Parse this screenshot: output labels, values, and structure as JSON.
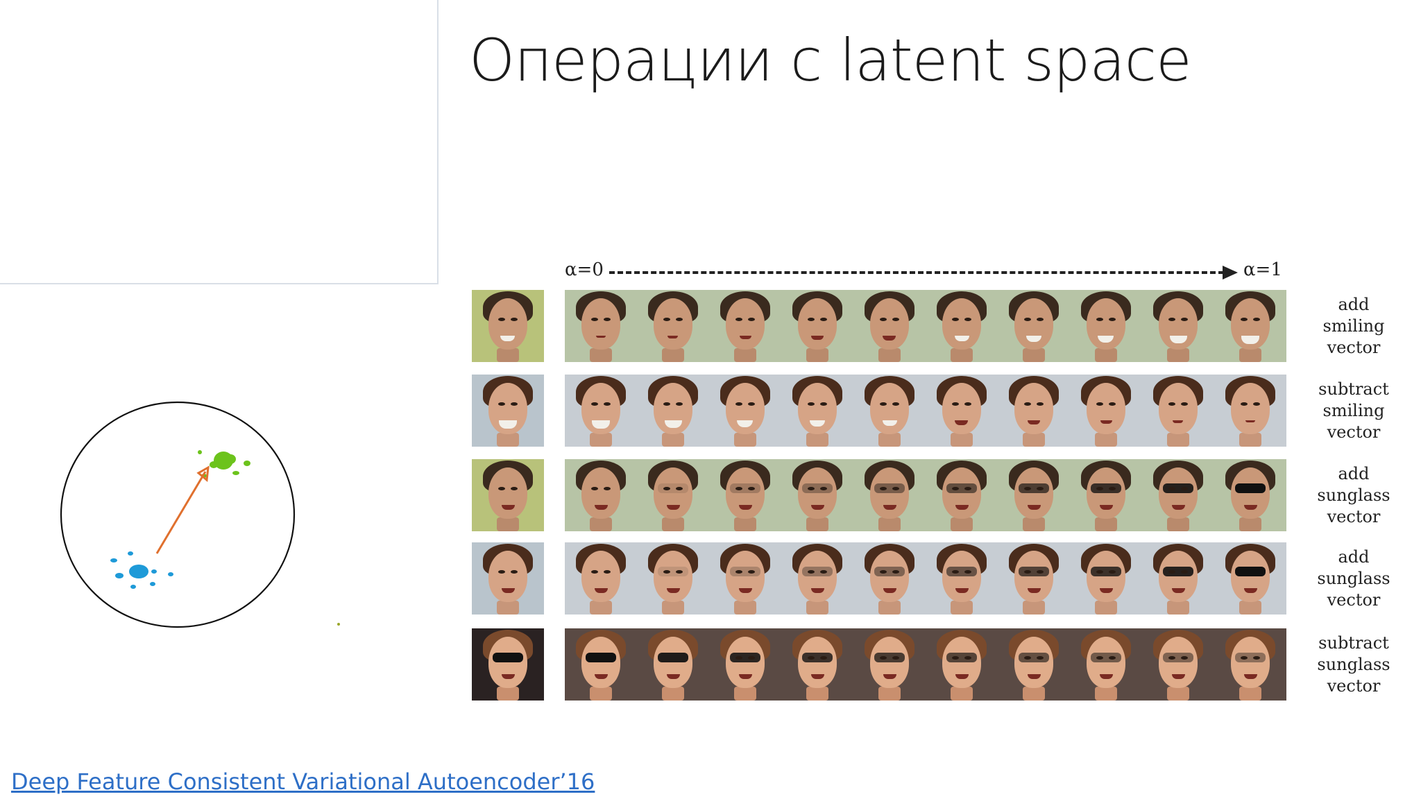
{
  "slide": {
    "title": "Операции с latent space",
    "citation": "Deep Feature Consistent Variational Autoencoder’16"
  },
  "latent_diagram": {
    "arrow_color": "#e0702e",
    "source_cluster_color": "#1e9ad8",
    "target_cluster_color": "#6cc31c",
    "circle_color": "#111111"
  },
  "figure": {
    "alpha_start": "α=0",
    "alpha_end": "α=1",
    "rows": [
      {
        "label": [
          "add",
          "smiling",
          "vector"
        ],
        "subject": "man",
        "effect": "smile",
        "direction": "add"
      },
      {
        "label": [
          "subtract",
          "smiling",
          "vector"
        ],
        "subject": "woman",
        "effect": "smile",
        "direction": "subtract"
      },
      {
        "label": [
          "add",
          "sunglass",
          "vector"
        ],
        "subject": "man",
        "effect": "sunglass",
        "direction": "add"
      },
      {
        "label": [
          "add",
          "sunglass",
          "vector"
        ],
        "subject": "woman",
        "effect": "sunglass",
        "direction": "add"
      },
      {
        "label": [
          "subtract",
          "sunglass",
          "vector"
        ],
        "subject": "man2",
        "effect": "sunglass",
        "direction": "subtract"
      }
    ],
    "steps": 10
  }
}
